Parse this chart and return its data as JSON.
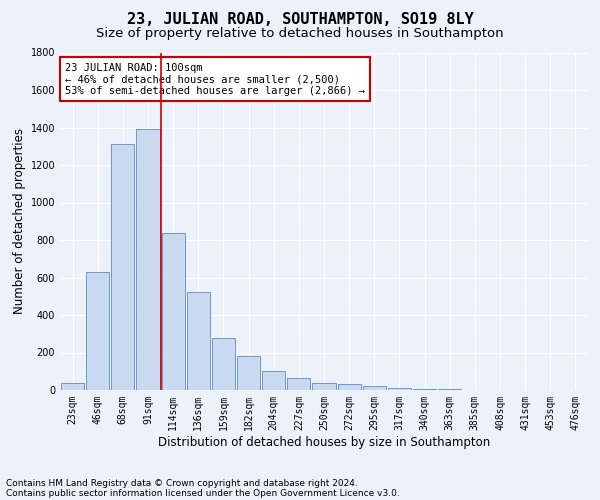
{
  "title": "23, JULIAN ROAD, SOUTHAMPTON, SO19 8LY",
  "subtitle": "Size of property relative to detached houses in Southampton",
  "xlabel": "Distribution of detached houses by size in Southampton",
  "ylabel": "Number of detached properties",
  "footnote1": "Contains HM Land Registry data © Crown copyright and database right 2024.",
  "footnote2": "Contains public sector information licensed under the Open Government Licence v3.0.",
  "annotation_title": "23 JULIAN ROAD: 100sqm",
  "annotation_line1": "← 46% of detached houses are smaller (2,500)",
  "annotation_line2": "53% of semi-detached houses are larger (2,866) →",
  "bar_color": "#c9d9f0",
  "bar_edge_color": "#5b8fc9",
  "vline_color": "#cc0000",
  "vline_x_index": 3,
  "categories": [
    "23sqm",
    "46sqm",
    "68sqm",
    "91sqm",
    "114sqm",
    "136sqm",
    "159sqm",
    "182sqm",
    "204sqm",
    "227sqm",
    "250sqm",
    "272sqm",
    "295sqm",
    "317sqm",
    "340sqm",
    "363sqm",
    "385sqm",
    "408sqm",
    "431sqm",
    "453sqm",
    "476sqm"
  ],
  "values": [
    40,
    630,
    1310,
    1390,
    840,
    525,
    275,
    180,
    100,
    65,
    35,
    30,
    20,
    10,
    5,
    3,
    2,
    1,
    1,
    0,
    0
  ],
  "ylim": [
    0,
    1800
  ],
  "yticks": [
    0,
    200,
    400,
    600,
    800,
    1000,
    1200,
    1400,
    1600,
    1800
  ],
  "background_color": "#edf1f9",
  "grid_color": "#ffffff",
  "title_fontsize": 11,
  "subtitle_fontsize": 9.5,
  "axis_label_fontsize": 8.5,
  "tick_fontsize": 7,
  "footnote_fontsize": 6.5,
  "annotation_fontsize": 7.5
}
